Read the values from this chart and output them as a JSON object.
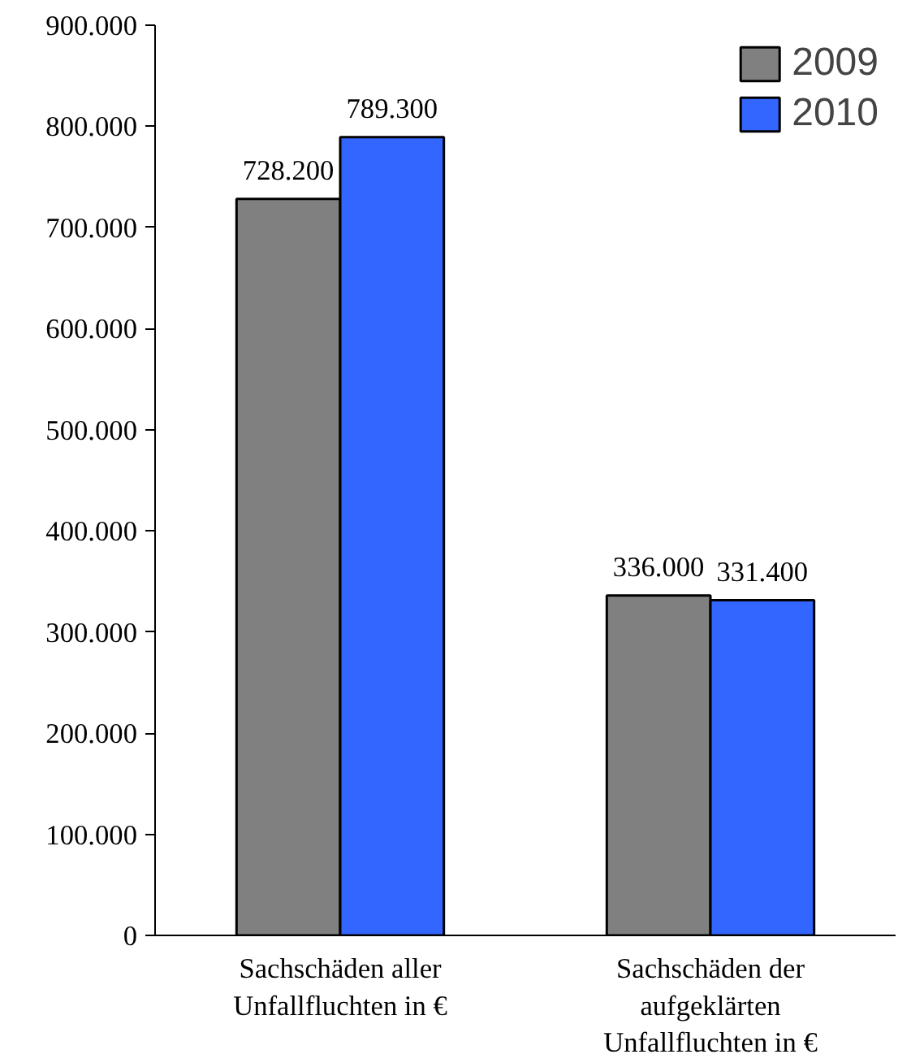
{
  "chart_data": {
    "type": "bar",
    "categories": [
      "Sachschäden aller Unfallfluchten in €",
      "Sachschäden der aufgeklärten Unfallfluchten in €"
    ],
    "series": [
      {
        "name": "2009",
        "color": "#808080",
        "values": [
          728200,
          336000
        ],
        "value_labels": [
          "728.200",
          "336.000"
        ]
      },
      {
        "name": "2010",
        "color": "#3366ff",
        "values": [
          789300,
          331400
        ],
        "value_labels": [
          "789.300",
          "331.400"
        ]
      }
    ],
    "ylim": [
      0,
      900000
    ],
    "yticks": [
      {
        "value": 0,
        "label": "0"
      },
      {
        "value": 100000,
        "label": "100.000"
      },
      {
        "value": 200000,
        "label": "200.000"
      },
      {
        "value": 300000,
        "label": "300.000"
      },
      {
        "value": 400000,
        "label": "400.000"
      },
      {
        "value": 500000,
        "label": "500.000"
      },
      {
        "value": 600000,
        "label": "600.000"
      },
      {
        "value": 700000,
        "label": "700.000"
      },
      {
        "value": 800000,
        "label": "800.000"
      },
      {
        "value": 900000,
        "label": "900.000"
      }
    ],
    "grid": false,
    "legend": "top right"
  }
}
